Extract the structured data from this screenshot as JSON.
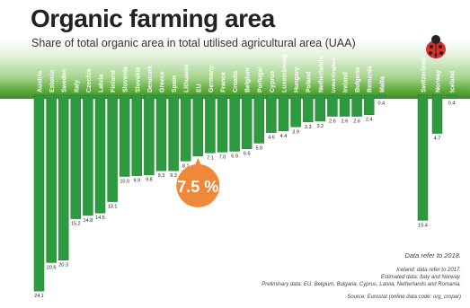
{
  "title": "Organic farming area",
  "subtitle": "Share of total organic area in total utilised agricultural area (UAA)",
  "chart_data": {
    "type": "bar",
    "title": "Organic farming area",
    "subtitle": "Share of total organic area in total utilised agricultural area (UAA)",
    "ylabel": "",
    "xlabel": "",
    "ylim": [
      0,
      25
    ],
    "orientation": "bars hang downward from a common baseline",
    "categories": [
      "Austria",
      "Estonia",
      "Sweden",
      "Italy",
      "Czechia",
      "Latvia",
      "Finland",
      "Slovenia",
      "Slovakia",
      "Denmark",
      "Greece",
      "Spain",
      "Lithuania",
      "EU",
      "Germany",
      "France",
      "Croatia",
      "Belgium",
      "Portugal",
      "Cyprus",
      "Luxembourg",
      "Hungary",
      "Poland",
      "Netherlands",
      "United Kingdom",
      "Ireland",
      "Bulgaria",
      "Romania",
      "Malta",
      "Switzerland",
      "Norway",
      "Iceland"
    ],
    "values": [
      24.1,
      20.6,
      20.3,
      15.2,
      14.8,
      14.5,
      13.1,
      10.0,
      9.9,
      9.8,
      9.3,
      9.3,
      8.1,
      7.5,
      7.1,
      7.0,
      6.9,
      6.6,
      5.9,
      4.6,
      4.4,
      3.9,
      3.3,
      3.2,
      2.6,
      2.6,
      2.6,
      2.4,
      0.4,
      15.4,
      4.7,
      0.4
    ],
    "value_labels": [
      "24.1",
      "20.6",
      "20.3",
      "15.2",
      "14.8",
      "14.5",
      "13.1",
      "10.0",
      "9.9",
      "9.8",
      "9.3",
      "9.3",
      "8.1",
      "",
      "7.1",
      "7.0",
      "6.9",
      "6.6",
      "5.9",
      "4.6",
      "4.4",
      "3.9",
      "3.3",
      "3.2",
      "2.6",
      "2.6",
      "2.6",
      "2.4",
      "0.4",
      "15.4",
      "4.7",
      "0.4"
    ],
    "highlight": {
      "category": "EU",
      "label": "7.5 %"
    },
    "grid": false,
    "legend": "none"
  },
  "notes": [
    "Data refer to 2018.",
    "Iceland: data refer to 2017.",
    "Estimated data:  Italy and Norway.",
    "Preliminary data: EU, Belgium, Bulgaria, Cyprus, Latvia, Netherlands and Romania.",
    "Source: Eurostat (online data code: org_cropar)"
  ],
  "colors": {
    "bar": "#2e9a3f",
    "bar_edge": "#1f7a2e",
    "eu_bubble": "#f0883a",
    "grass_dark": "#3f8d2a",
    "ladybug": "#d9302a"
  },
  "icons": {
    "decoration": "ladybug-icon"
  }
}
